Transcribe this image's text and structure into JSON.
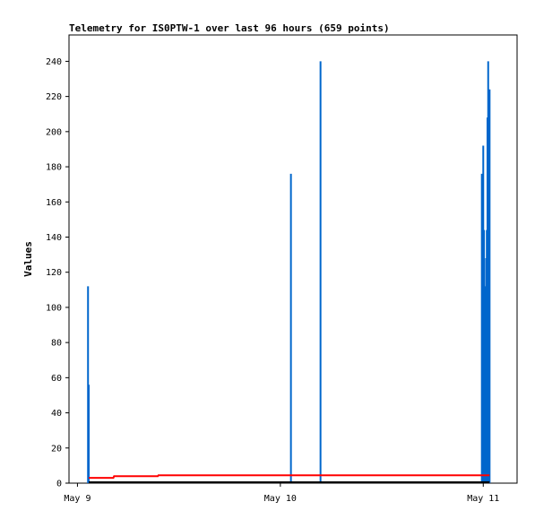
{
  "chart_data": {
    "type": "bar",
    "title": "Telemetry for IS0PTW-1 over last 96 hours (659 points)",
    "xlabel": "",
    "ylabel": "Values",
    "x_axis": {
      "type": "date",
      "range": [
        "2024-05-08T23:00:00",
        "2024-05-11T04:00:00"
      ],
      "ticks": [
        {
          "value": "2024-05-09T00:00:00",
          "label": "May 9"
        },
        {
          "value": "2024-05-10T00:00:00",
          "label": "May 10"
        },
        {
          "value": "2024-05-11T00:00:00",
          "label": "May 11"
        }
      ]
    },
    "ylim": [
      0,
      255
    ],
    "yticks": [
      0,
      20,
      40,
      60,
      80,
      100,
      120,
      140,
      160,
      180,
      200,
      220,
      240
    ],
    "grid": false,
    "legend": "none",
    "series": [
      {
        "type": "bar",
        "color": "#0066cc",
        "points": [
          [
            "2024-05-09T01:15:00",
            112
          ],
          [
            "2024-05-09T01:20:00",
            56
          ],
          [
            "2024-05-10T01:15:00",
            176
          ],
          [
            "2024-05-10T04:45:00",
            240
          ],
          [
            "2024-05-10T23:50:00",
            176
          ],
          [
            "2024-05-10T23:55:00",
            160
          ],
          [
            "2024-05-11T00:00:00",
            192
          ],
          [
            "2024-05-11T00:05:00",
            144
          ],
          [
            "2024-05-11T00:10:00",
            112
          ],
          [
            "2024-05-11T00:15:00",
            48
          ],
          [
            "2024-05-11T00:20:00",
            128
          ],
          [
            "2024-05-11T00:25:00",
            144
          ],
          [
            "2024-05-11T00:30:00",
            208
          ],
          [
            "2024-05-11T00:35:00",
            240
          ],
          [
            "2024-05-11T00:40:00",
            144
          ],
          [
            "2024-05-11T00:45:00",
            224
          ]
        ]
      },
      {
        "type": "line",
        "color": "#ff0000",
        "points": [
          [
            "2024-05-09T01:20:00",
            3
          ],
          [
            "2024-05-09T04:15:00",
            3
          ],
          [
            "2024-05-09T04:20:00",
            4
          ],
          [
            "2024-05-09T09:30:00",
            4
          ],
          [
            "2024-05-09T09:35:00",
            4.5
          ],
          [
            "2024-05-10T04:25:00",
            4.5
          ],
          [
            "2024-05-10T04:30:00",
            4.5
          ],
          [
            "2024-05-11T00:45:00",
            4.5
          ]
        ]
      },
      {
        "type": "line",
        "color": "#000000",
        "points": [
          [
            "2024-05-09T01:20:00",
            0.5
          ],
          [
            "2024-05-11T00:45:00",
            0.5
          ]
        ]
      }
    ]
  }
}
